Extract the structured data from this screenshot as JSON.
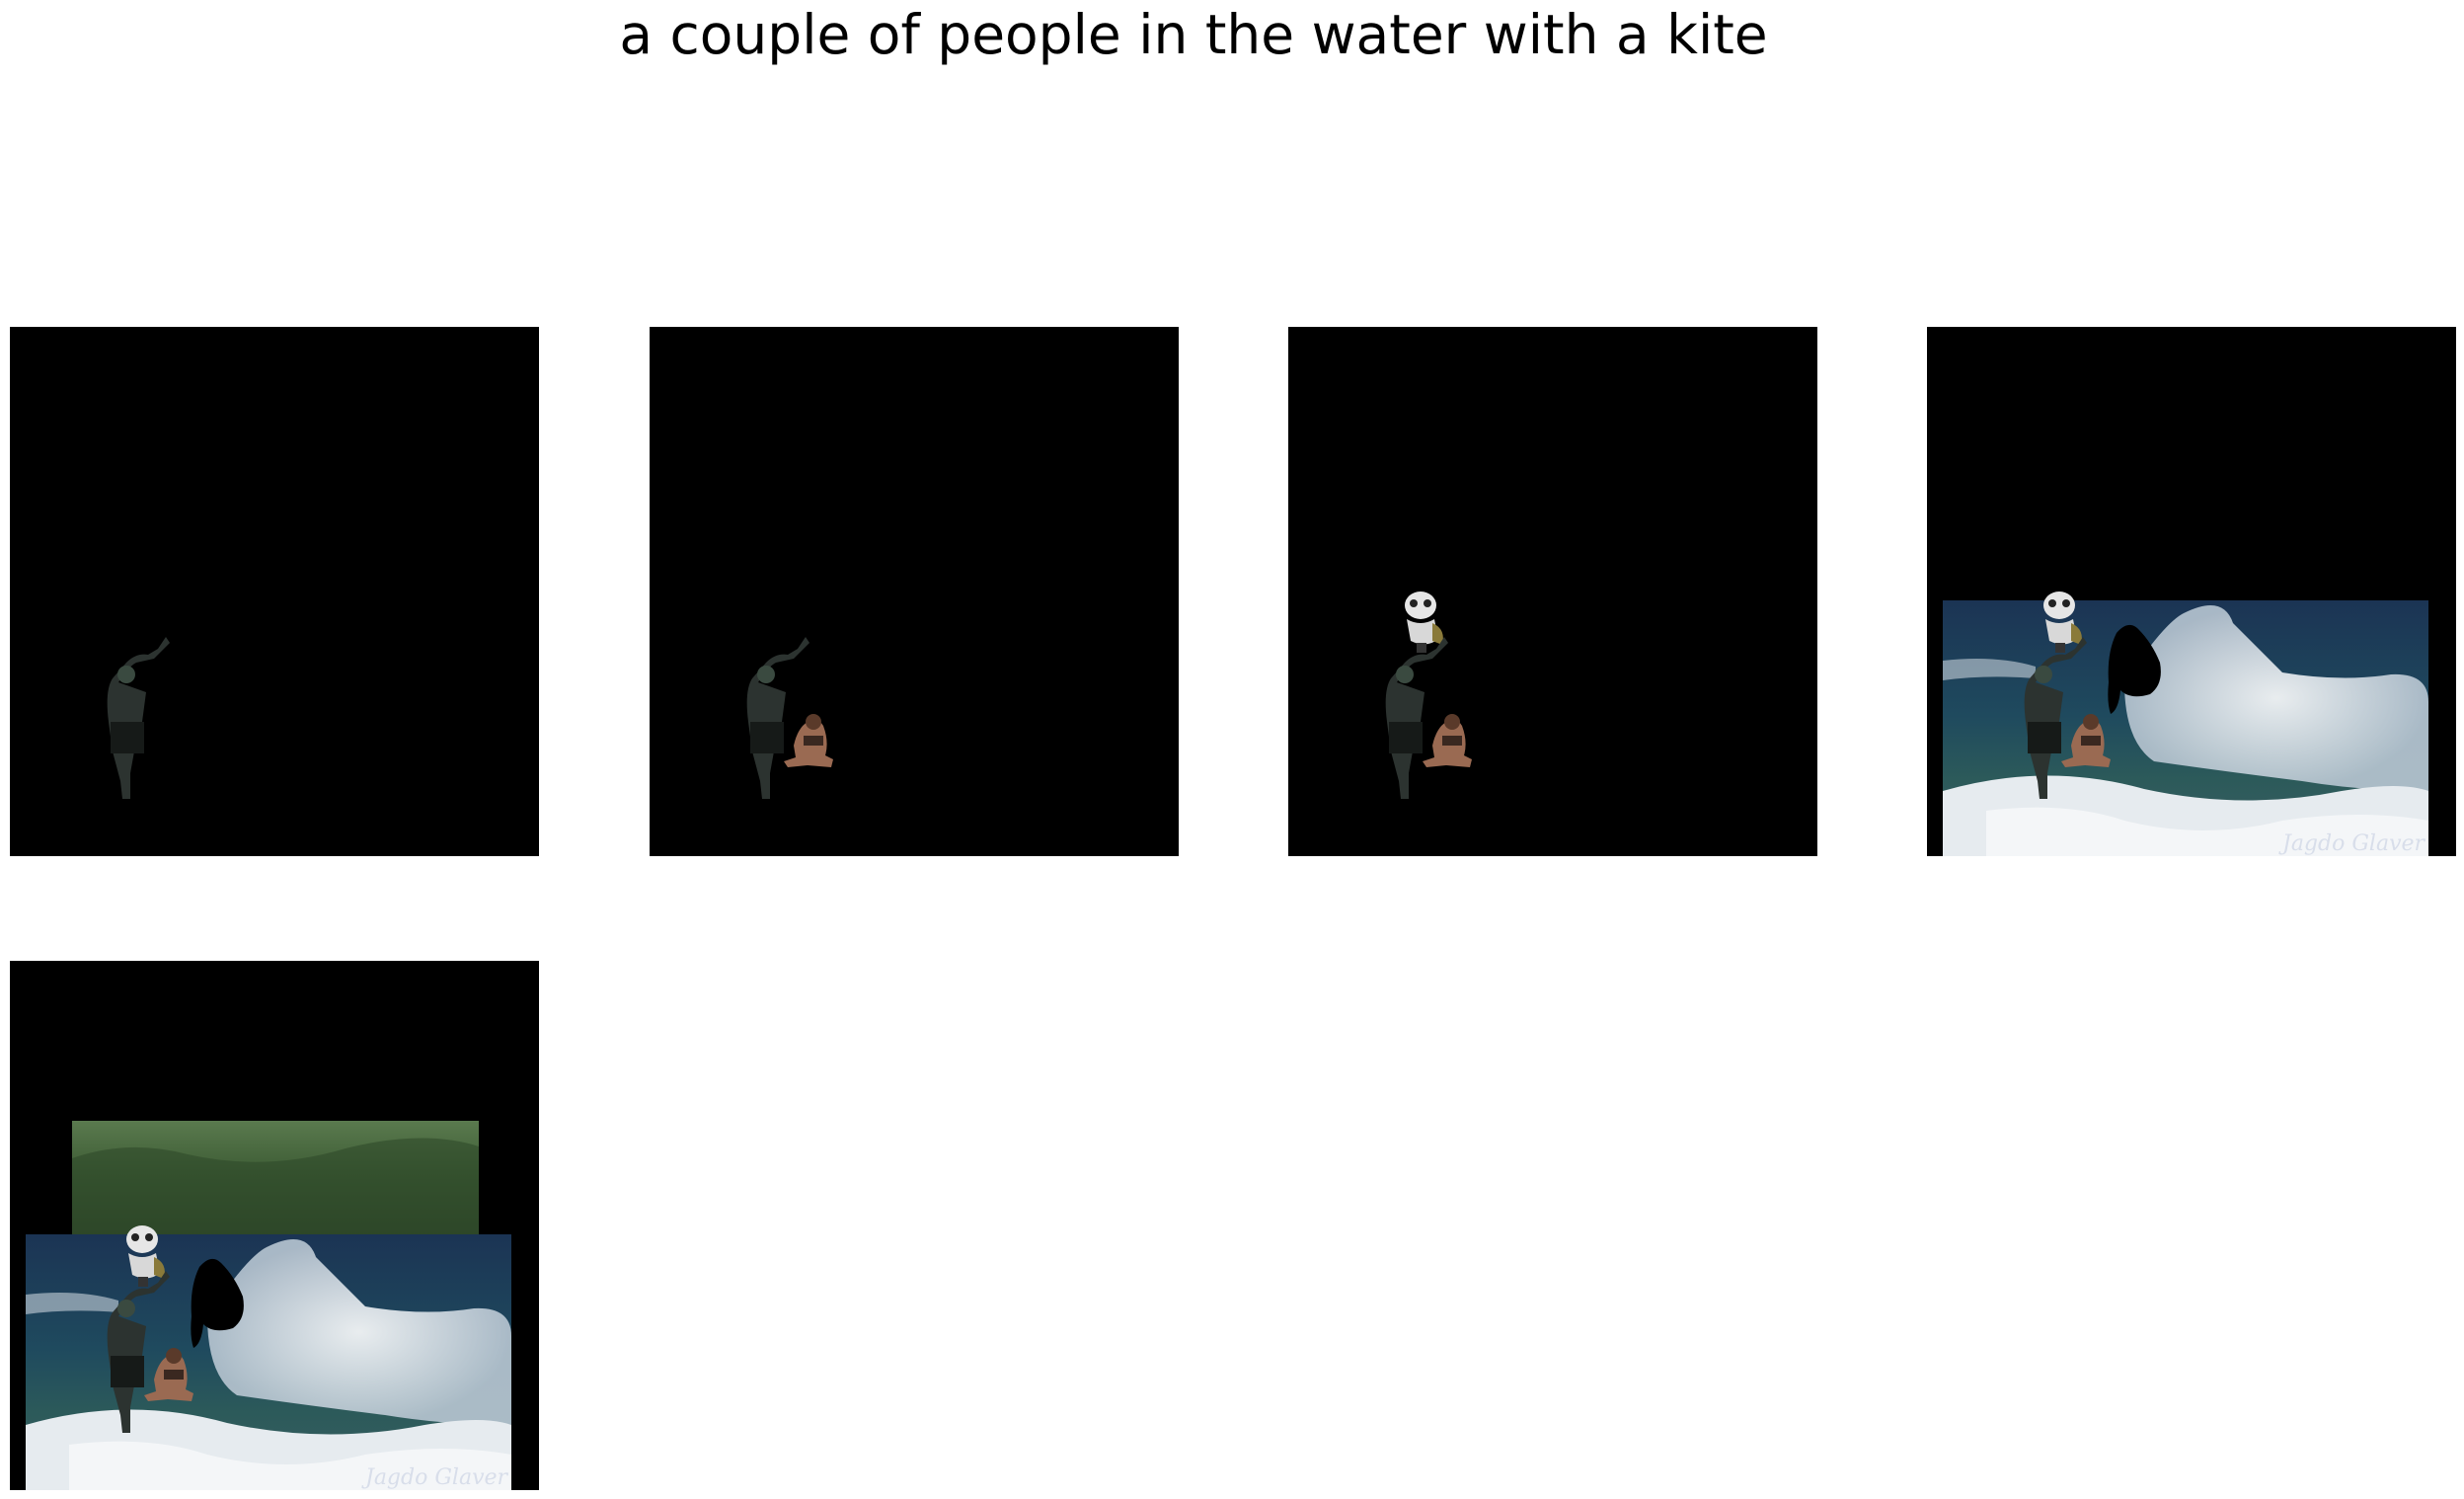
{
  "title": "a couple of people in the water with a kite",
  "panels": [
    {
      "step": 1,
      "layers": [
        "man"
      ]
    },
    {
      "step": 2,
      "layers": [
        "man",
        "woman"
      ]
    },
    {
      "step": 3,
      "layers": [
        "man",
        "woman",
        "kite"
      ]
    },
    {
      "step": 4,
      "layers": [
        "man",
        "woman",
        "kite",
        "sea",
        "blob"
      ]
    },
    {
      "step": 5,
      "layers": [
        "man",
        "woman",
        "kite",
        "sea",
        "blob",
        "hillside"
      ]
    }
  ],
  "watermark": "Jagdo Glaver",
  "colors": {
    "canvas": "#000000",
    "sea": "#1f3c5e",
    "foam": "#e6ebef",
    "hillside": "#3e5c35"
  }
}
